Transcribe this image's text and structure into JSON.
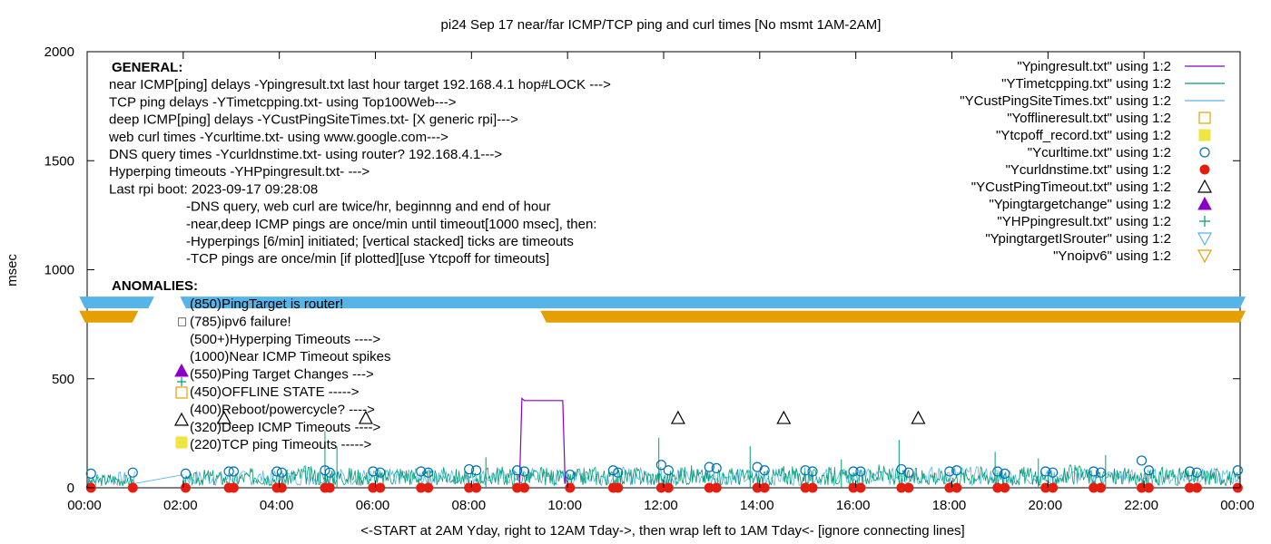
{
  "chart_data": {
    "type": "line",
    "title": "pi24 Sep 17  near/far ICMP/TCP ping and curl times [No msmt 1AM-2AM]",
    "xlabel": "<-START at 2AM Yday, right to 12AM Tday->, then wrap left to 1AM Tday<- [ignore connecting lines]",
    "ylabel": "msec",
    "xlim": [
      0,
      24
    ],
    "ylim": [
      0,
      2000
    ],
    "x_ticks": [
      0,
      2,
      4,
      6,
      8,
      10,
      12,
      14,
      16,
      18,
      20,
      22,
      24
    ],
    "x_tick_labels": [
      "00:00",
      "02:00",
      "04:00",
      "06:00",
      "08:00",
      "10:00",
      "12:00",
      "14:00",
      "16:00",
      "18:00",
      "20:00",
      "22:00",
      "00:00"
    ],
    "y_ticks": [
      0,
      500,
      1000,
      1500,
      2000
    ],
    "y_tick_labels": [
      "0",
      "500",
      "1000",
      "1500",
      "2000"
    ],
    "grid": false,
    "legend_position": "top-right",
    "legend": [
      {
        "label": "\"Ypingresult.txt\" using 1:2",
        "style": "line",
        "color": "#8b00c8"
      },
      {
        "label": "\"YTimetcpping.txt\" using 1:2",
        "style": "line",
        "color": "#009e73"
      },
      {
        "label": "\"YCustPingSiteTimes.txt\" using 1:2",
        "style": "line",
        "color": "#56b4e9"
      },
      {
        "label": "\"Yofflineresult.txt\" using 1:2",
        "style": "open-square",
        "color": "#e69f00"
      },
      {
        "label": "\"Ytcpoff_record.txt\" using 1:2",
        "style": "filled-square",
        "color": "#f0e442"
      },
      {
        "label": "\"Ycurltime.txt\" using 1:2",
        "style": "open-circle",
        "color": "#0072b2"
      },
      {
        "label": "\"Ycurldnstime.txt\" using 1:2",
        "style": "filled-circle",
        "color": "#e51e10"
      },
      {
        "label": "\"YCustPingTimeout.txt\" using 1:2",
        "style": "open-triangle",
        "color": "#000000"
      },
      {
        "label": "\"Ypingtargetchange\" using 1:2",
        "style": "filled-triangle",
        "color": "#8b00c8"
      },
      {
        "label": "\"YHPpingresult.txt\" using 1:2",
        "style": "plus",
        "color": "#009e73"
      },
      {
        "label": "\"YpingtargetISrouter\" using 1:2",
        "style": "open-down-triangle",
        "color": "#56b4e9"
      },
      {
        "label": "\"Ynoipv6\" using 1:2",
        "style": "open-down-triangle",
        "color": "#e69f00"
      }
    ],
    "annotations_general": [
      {
        "text": "GENERAL:",
        "bold": true,
        "indent": 0
      },
      {
        "text": "near ICMP[ping] delays -Ypingresult.txt last hour target 192.168.4.1 hop#LOCK --->",
        "indent": 0
      },
      {
        "text": "TCP ping delays -YTimetcpping.txt- using Top100Web--->",
        "indent": 0
      },
      {
        "text": "deep ICMP[ping] delays -YCustPingSiteTimes.txt- [X generic rpi]--->",
        "indent": 0
      },
      {
        "text": "web curl times -Ycurltime.txt- using www.google.com--->",
        "indent": 0
      },
      {
        "text": "DNS query times -Ycurldnstime.txt- using router? 192.168.4.1--->",
        "indent": 0
      },
      {
        "text": "Hyperping timeouts -YHPpingresult.txt- --->",
        "indent": 0
      },
      {
        "text": "Last rpi boot: 2023-09-17 09:28:08",
        "indent": 0
      },
      {
        "text": "-DNS query, web curl are twice/hr, beginnng and end of hour",
        "indent": 1
      },
      {
        "text": "-near,deep ICMP pings are once/min until timeout[1000 msec], then:",
        "indent": 1
      },
      {
        "text": "  -Hyperpings [6/min] initiated; [vertical stacked] ticks are timeouts",
        "indent": 1
      },
      {
        "text": "-TCP pings are once/min [if plotted][use Ytcpoff for timeouts]",
        "indent": 1
      }
    ],
    "annotations_anomalies": [
      {
        "text": "ANOMALIES:",
        "bold": true
      },
      {
        "text": "(850)PingTarget is router!",
        "y": 850
      },
      {
        "text": "(785)ipv6 failure!",
        "y": 785,
        "glyph": "□"
      },
      {
        "text": "(500+)Hyperping Timeouts ---->",
        "y": 707
      },
      {
        "text": "(1000)Near ICMP Timeout spikes",
        "y": 626
      },
      {
        "text": "(550)Ping Target Changes --->",
        "y": 545
      },
      {
        "text": "(450)OFFLINE STATE ----->",
        "y": 463
      },
      {
        "text": "(400)Reboot/powercycle? ---->",
        "y": 382
      },
      {
        "text": "(320)Deep ICMP Timeouts ---->",
        "y": 300
      },
      {
        "text": "(220)TCP ping Timeouts ----->",
        "y": 219
      }
    ],
    "series": [
      {
        "name": "\"YpingtargetISrouter\" using 1:2",
        "marker": "open-down-triangle",
        "color": "#56b4e9",
        "y": 850,
        "segments": [
          [
            -0.15,
            1.38
          ],
          [
            1.95,
            24.1
          ]
        ]
      },
      {
        "name": "\"Ynoipv6\" using 1:2",
        "marker": "open-down-triangle",
        "color": "#e69f00",
        "y": 785,
        "segments": [
          [
            -0.15,
            1.05
          ],
          [
            9.45,
            24.1
          ]
        ]
      },
      {
        "name": "\"YCustPingTimeout.txt\" using 1:2",
        "marker": "open-triangle",
        "color": "#000000",
        "points": [
          [
            2.85,
            320
          ],
          [
            5.8,
            320
          ],
          [
            12.3,
            320
          ],
          [
            14.5,
            320
          ],
          [
            17.3,
            320
          ]
        ]
      },
      {
        "name": "\"Ypingresult.txt\" using 1:2",
        "marker": "line",
        "color": "#8b00c8",
        "points": [
          [
            9.0,
            20
          ],
          [
            9.05,
            410
          ],
          [
            9.1,
            400
          ],
          [
            9.9,
            400
          ],
          [
            9.95,
            20
          ]
        ]
      },
      {
        "name": "\"Ycurltime.txt\" using 1:2",
        "marker": "open-circle",
        "color": "#0072b2",
        "points": [
          [
            0.08,
            65
          ],
          [
            0.95,
            70
          ],
          [
            2.05,
            65
          ],
          [
            2.95,
            75
          ],
          [
            3.05,
            75
          ],
          [
            3.95,
            75
          ],
          [
            4.05,
            70
          ],
          [
            4.95,
            80
          ],
          [
            5.05,
            70
          ],
          [
            5.95,
            75
          ],
          [
            6.1,
            70
          ],
          [
            6.95,
            75
          ],
          [
            7.1,
            70
          ],
          [
            7.95,
            85
          ],
          [
            8.1,
            80
          ],
          [
            8.95,
            80
          ],
          [
            9.1,
            75
          ],
          [
            10.05,
            60
          ],
          [
            10.95,
            80
          ],
          [
            11.05,
            70
          ],
          [
            11.95,
            105
          ],
          [
            12.1,
            80
          ],
          [
            12.95,
            95
          ],
          [
            13.1,
            90
          ],
          [
            13.95,
            95
          ],
          [
            14.1,
            80
          ],
          [
            14.95,
            80
          ],
          [
            15.1,
            75
          ],
          [
            15.95,
            75
          ],
          [
            16.1,
            75
          ],
          [
            16.95,
            85
          ],
          [
            17.1,
            70
          ],
          [
            17.95,
            75
          ],
          [
            18.1,
            80
          ],
          [
            18.95,
            75
          ],
          [
            19.1,
            65
          ],
          [
            19.95,
            75
          ],
          [
            20.1,
            70
          ],
          [
            20.95,
            75
          ],
          [
            21.1,
            70
          ],
          [
            21.95,
            125
          ],
          [
            22.1,
            80
          ],
          [
            22.95,
            75
          ],
          [
            23.1,
            70
          ],
          [
            23.95,
            80
          ]
        ]
      },
      {
        "name": "\"Ycurldnstime.txt\" using 1:2",
        "marker": "filled-circle",
        "color": "#e51e10",
        "points": [
          [
            0.08,
            0
          ],
          [
            0.95,
            0
          ],
          [
            2.05,
            0
          ],
          [
            2.95,
            0
          ],
          [
            3.05,
            0
          ],
          [
            3.95,
            0
          ],
          [
            4.05,
            0
          ],
          [
            4.95,
            0
          ],
          [
            5.05,
            0
          ],
          [
            5.95,
            0
          ],
          [
            6.1,
            0
          ],
          [
            6.95,
            0
          ],
          [
            7.1,
            0
          ],
          [
            7.95,
            0
          ],
          [
            8.1,
            0
          ],
          [
            8.95,
            0
          ],
          [
            9.1,
            0
          ],
          [
            10.05,
            0
          ],
          [
            10.95,
            0
          ],
          [
            11.05,
            0
          ],
          [
            11.95,
            0
          ],
          [
            12.1,
            0
          ],
          [
            12.95,
            0
          ],
          [
            13.1,
            0
          ],
          [
            13.95,
            0
          ],
          [
            14.1,
            0
          ],
          [
            14.95,
            0
          ],
          [
            15.1,
            0
          ],
          [
            15.95,
            0
          ],
          [
            16.1,
            0
          ],
          [
            16.95,
            0
          ],
          [
            17.1,
            0
          ],
          [
            17.95,
            0
          ],
          [
            18.1,
            0
          ],
          [
            18.95,
            0
          ],
          [
            19.1,
            0
          ],
          [
            19.95,
            0
          ],
          [
            20.1,
            0
          ],
          [
            20.95,
            0
          ],
          [
            21.1,
            0
          ],
          [
            21.95,
            0
          ],
          [
            22.1,
            0
          ],
          [
            22.95,
            0
          ],
          [
            23.1,
            0
          ],
          [
            23.95,
            0
          ]
        ]
      },
      {
        "name": "\"YTimetcpping.txt\" using 1:2",
        "marker": "line",
        "color": "#009e73",
        "points": [
          [
            0.0,
            25
          ],
          [
            0.5,
            40
          ],
          [
            1.0,
            30
          ],
          [
            1.5,
            45
          ],
          [
            2.0,
            30
          ],
          [
            2.5,
            50
          ],
          [
            3.0,
            35
          ],
          [
            3.5,
            55
          ],
          [
            4.0,
            40
          ],
          [
            4.5,
            60
          ],
          [
            5.0,
            45
          ],
          [
            5.5,
            55
          ],
          [
            6.0,
            40
          ],
          [
            6.5,
            60
          ],
          [
            7.0,
            45
          ],
          [
            7.5,
            55
          ],
          [
            8.0,
            40
          ],
          [
            8.5,
            60
          ],
          [
            9.0,
            45
          ],
          [
            9.5,
            55
          ],
          [
            10.0,
            40
          ],
          [
            10.5,
            60
          ],
          [
            11.0,
            45
          ],
          [
            11.5,
            55
          ],
          [
            12.0,
            40
          ],
          [
            12.5,
            60
          ],
          [
            13.0,
            45
          ],
          [
            13.5,
            55
          ],
          [
            14.0,
            40
          ],
          [
            14.5,
            60
          ],
          [
            15.0,
            45
          ],
          [
            15.5,
            55
          ],
          [
            16.0,
            40
          ],
          [
            16.5,
            60
          ],
          [
            17.0,
            45
          ],
          [
            17.5,
            55
          ],
          [
            18.0,
            40
          ],
          [
            18.5,
            60
          ],
          [
            19.0,
            45
          ],
          [
            19.5,
            55
          ],
          [
            20.0,
            40
          ],
          [
            20.5,
            60
          ],
          [
            21.0,
            45
          ],
          [
            21.5,
            55
          ],
          [
            22.0,
            40
          ],
          [
            22.5,
            60
          ],
          [
            23.0,
            45
          ],
          [
            23.5,
            55
          ],
          [
            24.0,
            40
          ]
        ]
      },
      {
        "name": "\"YCustPingSiteTimes.txt\" using 1:2",
        "marker": "line",
        "color": "#56b4e9",
        "points": [
          [
            0.0,
            40
          ],
          [
            1.0,
            45
          ],
          [
            2.0,
            50
          ],
          [
            3.0,
            45
          ],
          [
            4.0,
            50
          ],
          [
            5.0,
            55
          ],
          [
            6.0,
            50
          ],
          [
            7.0,
            55
          ],
          [
            8.0,
            50
          ],
          [
            9.0,
            55
          ],
          [
            10.0,
            50
          ],
          [
            11.0,
            55
          ],
          [
            12.0,
            60
          ],
          [
            13.0,
            55
          ],
          [
            14.0,
            50
          ],
          [
            15.0,
            55
          ],
          [
            16.0,
            50
          ],
          [
            17.0,
            55
          ],
          [
            18.0,
            60
          ],
          [
            19.0,
            55
          ],
          [
            20.0,
            50
          ],
          [
            21.0,
            55
          ],
          [
            22.0,
            50
          ],
          [
            23.0,
            55
          ],
          [
            24.0,
            50
          ]
        ]
      }
    ],
    "tcp_spikes": [
      [
        4.95,
        260
      ],
      [
        5.2,
        190
      ],
      [
        11.9,
        230
      ],
      [
        13.8,
        190
      ],
      [
        16.9,
        220
      ],
      [
        18.9,
        165
      ],
      [
        21.2,
        150
      ],
      [
        8.3,
        140
      ],
      [
        19.8,
        135
      ],
      [
        15.7,
        130
      ]
    ]
  }
}
